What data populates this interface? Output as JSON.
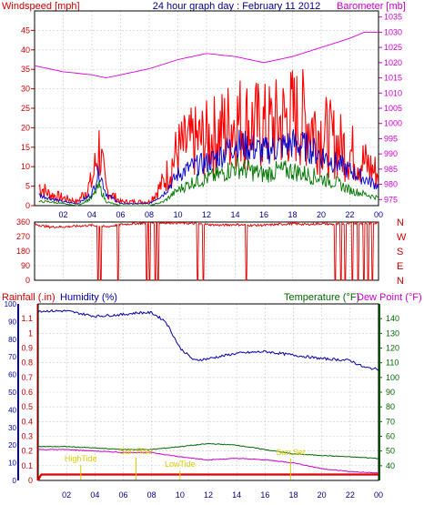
{
  "title": "24 hour graph day : February 11 2012",
  "hour_labels": [
    "02",
    "04",
    "06",
    "08",
    "10",
    "12",
    "14",
    "16",
    "18",
    "20",
    "22",
    "00"
  ],
  "panels": {
    "wind": {
      "left_label": "Windspeed [mph]",
      "right_label": "Barometer [mb]",
      "left_ticks": [
        "0",
        "5",
        "10",
        "15",
        "20",
        "25",
        "30",
        "35",
        "40",
        "45"
      ],
      "right_ticks": [
        "975",
        "980",
        "985",
        "990",
        "995",
        "1000",
        "1005",
        "1010",
        "1015",
        "1020",
        "1025",
        "1030",
        "1035"
      ]
    },
    "direction": {
      "left_ticks": [
        "0",
        "90",
        "180",
        "270",
        "360"
      ],
      "compass": [
        "N",
        "W",
        "S",
        "E",
        "N"
      ]
    },
    "weather": {
      "rainfall_label": "Rainfall (.in)",
      "humidity_label": "Humidity (%)",
      "temperature_label": "Temperature (°F)",
      "dewpoint_label": "Dew Point (°F)",
      "rain_ticks": [
        "0",
        "0.1",
        "0.2",
        "0.3",
        "0.4",
        "0.5",
        "0.6",
        "0.7",
        "0.8",
        "0.9",
        "1",
        "1.1"
      ],
      "humidity_ticks": [
        "0",
        "10",
        "20",
        "30",
        "40",
        "50",
        "60",
        "70",
        "80",
        "90",
        "100"
      ],
      "temp_ticks": [
        "40",
        "50",
        "60",
        "70",
        "80",
        "90",
        "100",
        "110",
        "120",
        "130",
        "140"
      ],
      "annotations": [
        "HighTide",
        "Sun Rise",
        "LowTide",
        "Sun Set"
      ]
    }
  },
  "colors": {
    "gust": "#ff0000",
    "avg_wind": "#0000cc",
    "wind_low": "#007700",
    "barometer": "#dd00dd",
    "direction": "#dd0000",
    "humidity": "#0000aa",
    "temperature": "#006600",
    "dewpoint": "#cc00cc",
    "rain": "#dd0000",
    "annotation": "#ddcc00",
    "axis_left": "#cc0000",
    "axis_right": "#cc00cc",
    "title": "#000088"
  },
  "chart_data": [
    {
      "type": "line",
      "name": "wind_and_barometer",
      "x_unit": "hour",
      "xlim": [
        0,
        24
      ],
      "ylim": [
        0,
        50
      ],
      "y2lim": [
        973,
        1037
      ],
      "series": [
        {
          "name": "Windspeed gust",
          "x": [
            0,
            1,
            2,
            3,
            4,
            4.5,
            5,
            6,
            7,
            8,
            9,
            10,
            11,
            12,
            13,
            14,
            15,
            16,
            17,
            18,
            19,
            20,
            21,
            22,
            23,
            24
          ],
          "values": [
            6,
            3,
            2,
            1,
            6,
            15,
            4,
            1,
            1,
            1,
            6,
            14,
            16,
            17,
            19,
            22,
            21,
            20,
            21,
            23,
            22,
            19,
            16,
            14,
            11,
            8
          ]
        },
        {
          "name": "Windspeed average",
          "x": [
            0,
            1,
            2,
            3,
            4,
            4.5,
            5,
            6,
            7,
            8,
            9,
            10,
            11,
            12,
            13,
            14,
            15,
            16,
            17,
            18,
            19,
            20,
            21,
            22,
            23,
            24
          ],
          "values": [
            3,
            2,
            1,
            0.5,
            3,
            9,
            3,
            0.5,
            0.5,
            0.5,
            3,
            8,
            10,
            11,
            13,
            16,
            15,
            14,
            15,
            16,
            15,
            13,
            11,
            9,
            7,
            5
          ]
        },
        {
          "name": "Windspeed low",
          "x": [
            0,
            1,
            2,
            3,
            4,
            4.5,
            5,
            6,
            7,
            8,
            9,
            10,
            11,
            12,
            13,
            14,
            15,
            16,
            17,
            18,
            19,
            20,
            21,
            22,
            23,
            24
          ],
          "values": [
            1,
            1,
            0.5,
            0,
            2,
            5,
            1,
            0,
            0,
            0,
            1,
            4,
            6,
            7,
            8,
            10,
            9,
            8,
            9,
            9,
            8,
            7,
            6,
            4,
            3,
            2
          ]
        },
        {
          "name": "Barometer",
          "axis": "right",
          "x": [
            0,
            2,
            4,
            5,
            6,
            8,
            10,
            12,
            14,
            15,
            16,
            18,
            20,
            22,
            23,
            24
          ],
          "values": [
            1019,
            1017,
            1016,
            1015,
            1016,
            1018,
            1021,
            1023,
            1022,
            1021,
            1020,
            1022,
            1025,
            1028,
            1030,
            1030
          ]
        }
      ]
    },
    {
      "type": "scatter",
      "name": "wind_direction",
      "x_unit": "hour",
      "xlim": [
        0,
        24
      ],
      "ylim": [
        0,
        360
      ],
      "series": [
        {
          "name": "Wind direction",
          "x": [
            0,
            1,
            2,
            3,
            4,
            5,
            6,
            7,
            8,
            9,
            10,
            11,
            12,
            13,
            14,
            15,
            16,
            17,
            18,
            19,
            20,
            21,
            22,
            23,
            24
          ],
          "values": [
            345,
            330,
            330,
            335,
            340,
            330,
            345,
            350,
            355,
            355,
            355,
            350,
            345,
            340,
            345,
            340,
            340,
            345,
            350,
            345,
            350,
            345,
            355,
            350,
            355
          ]
        }
      ]
    },
    {
      "type": "line",
      "name": "humidity_temperature_rain",
      "x_unit": "hour",
      "xlim": [
        0,
        24
      ],
      "ylim": [
        0,
        1.2
      ],
      "y_humidity": [
        0,
        100
      ],
      "y_temp": [
        30,
        150
      ],
      "series": [
        {
          "name": "Humidity",
          "x": [
            0,
            2,
            4,
            6,
            7,
            8,
            9,
            10,
            11,
            12,
            14,
            16,
            18,
            20,
            22,
            23,
            24
          ],
          "values": [
            96,
            96,
            93,
            94,
            95,
            95,
            90,
            75,
            68,
            69,
            72,
            73,
            71,
            69,
            68,
            64,
            63
          ]
        },
        {
          "name": "Temperature",
          "x": [
            0,
            2,
            4,
            6,
            8,
            10,
            12,
            14,
            16,
            18,
            20,
            22,
            24
          ],
          "values": [
            53,
            53,
            52,
            51,
            51,
            53,
            55,
            54,
            51,
            48,
            47,
            46,
            45
          ]
        },
        {
          "name": "Dew Point",
          "x": [
            0,
            2,
            4,
            6,
            8,
            10,
            12,
            14,
            16,
            18,
            20,
            22,
            24
          ],
          "values": [
            51,
            51,
            50,
            49,
            49,
            46,
            44,
            45,
            44,
            42,
            38,
            36,
            35
          ]
        },
        {
          "name": "Rainfall",
          "x": [
            0,
            0.2,
            24
          ],
          "values": [
            0,
            0.04,
            0.04
          ]
        }
      ]
    }
  ]
}
